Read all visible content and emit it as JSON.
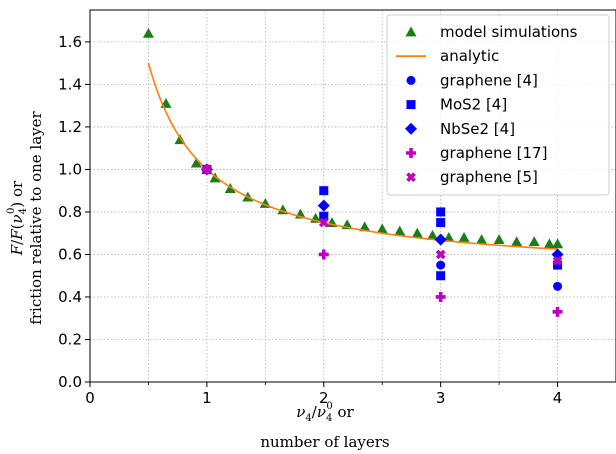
{
  "chart_data": {
    "type": "scatter",
    "xlim": [
      0,
      4.5
    ],
    "ylim": [
      0,
      1.75
    ],
    "x_ticks": [
      0,
      1,
      2,
      3,
      4
    ],
    "x_minor_ticks": [
      0.5,
      1.5,
      2.5,
      3.5
    ],
    "y_ticks": [
      0.0,
      0.2,
      0.4,
      0.6,
      0.8,
      1.0,
      1.2,
      1.4,
      1.6
    ],
    "grid": true,
    "legend_placement": "upper right",
    "xlabel_line1": "ν4/ν4⁰ or",
    "xlabel_line2": "number of layers",
    "ylabel_line1": "F/F(ν4⁰) or",
    "ylabel_line2": "friction relative to one layer",
    "series": [
      {
        "name": "model simulations",
        "marker": "triangle",
        "color": "#1a7f1a",
        "x": [
          0.5,
          0.65,
          0.77,
          0.91,
          1.0,
          1.07,
          1.2,
          1.35,
          1.5,
          1.65,
          1.8,
          1.93,
          2.07,
          2.2,
          2.35,
          2.5,
          2.65,
          2.8,
          2.93,
          3.07,
          3.2,
          3.35,
          3.5,
          3.65,
          3.8,
          3.93,
          4.0
        ],
        "y": [
          1.64,
          1.31,
          1.14,
          1.03,
          1.0,
          0.96,
          0.91,
          0.87,
          0.84,
          0.81,
          0.79,
          0.77,
          0.75,
          0.74,
          0.73,
          0.72,
          0.71,
          0.7,
          0.69,
          0.68,
          0.68,
          0.67,
          0.67,
          0.66,
          0.66,
          0.65,
          0.65
        ]
      },
      {
        "name": "analytic",
        "marker": "line",
        "color": "#ff7f0e",
        "x_range": [
          0.5,
          4.0
        ],
        "formula": "0.5 + 0.5/x"
      },
      {
        "name": "graphene [4]",
        "marker": "circle",
        "color": "#0000ff",
        "x": [
          1,
          2,
          3,
          4
        ],
        "y": [
          1.0,
          0.77,
          0.55,
          0.45
        ]
      },
      {
        "name": "MoS2 [4]",
        "marker": "square",
        "color": "#0000ff",
        "x": [
          1,
          2,
          2,
          3,
          3,
          3,
          4
        ],
        "y": [
          1.0,
          0.9,
          0.78,
          0.8,
          0.75,
          0.5,
          0.55
        ]
      },
      {
        "name": "NbSe2 [4]",
        "marker": "diamond",
        "color": "#0000ff",
        "x": [
          1,
          2,
          3,
          4
        ],
        "y": [
          1.0,
          0.83,
          0.67,
          0.6
        ]
      },
      {
        "name": "graphene [17]",
        "marker": "plus",
        "color": "#bf00bf",
        "x": [
          1,
          2,
          3,
          4
        ],
        "y": [
          1.0,
          0.6,
          0.4,
          0.33
        ]
      },
      {
        "name": "graphene [5]",
        "marker": "x",
        "color": "#bf00bf",
        "x": [
          1,
          2,
          3,
          4
        ],
        "y": [
          1.0,
          0.75,
          0.6,
          0.57
        ]
      }
    ]
  }
}
